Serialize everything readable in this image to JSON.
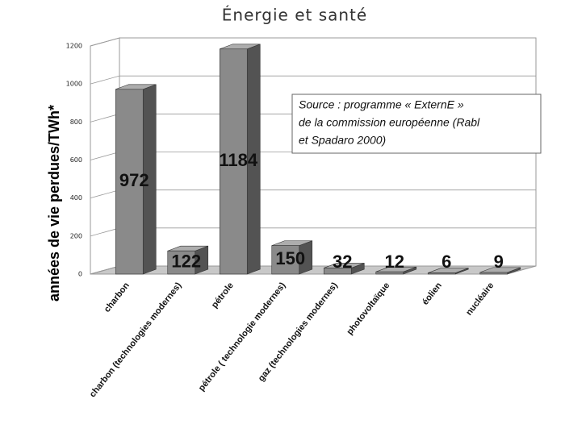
{
  "chart_data": {
    "type": "bar3d",
    "title": "Énergie et santé",
    "y_label": "années de vie perdues/TWh*",
    "categories": [
      "charbon",
      "charbon (technologies modernes)",
      "pétrole",
      "pétrole ( technologie modernes)",
      "gaz (technologies modernes)",
      "photovoltaïque",
      "éolien",
      "nucléaire"
    ],
    "values": [
      972,
      122,
      1184,
      150,
      32,
      12,
      6,
      9
    ],
    "color": "#8a8a8a",
    "ylim": [
      0,
      1200
    ],
    "yticks": [
      0,
      200,
      400,
      600,
      800,
      1000,
      1200
    ],
    "grid": true,
    "annotation": [
      "Source : programme « ExternE »",
      "de la commission européenne (Rabl",
      "et Spadaro 2000)"
    ]
  }
}
